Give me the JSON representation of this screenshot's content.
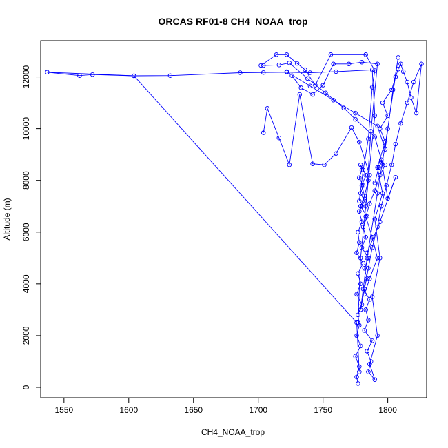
{
  "chart_data": {
    "type": "line",
    "title": "ORCAS RF01-8 CH4_NOAA_trop",
    "xlabel": "CH4_NOAA_trop",
    "ylabel": "Altitude (m)",
    "xlim": [
      1532,
      1830
    ],
    "ylim": [
      -400,
      13400
    ],
    "xticks": [
      1550,
      1600,
      1650,
      1700,
      1750,
      1800
    ],
    "yticks": [
      0,
      2000,
      4000,
      6000,
      8000,
      10000,
      12000
    ],
    "series_color": "#0000ff",
    "series": [
      {
        "x": [
          1777,
          1776,
          1778,
          1775,
          1779,
          1776,
          1778,
          1777,
          1780,
          1776,
          1779,
          1777,
          1781,
          1776,
          1778,
          1777,
          1780,
          1778,
          1782,
          1779,
          1781,
          1778,
          1780,
          1779,
          1783,
          1780,
          1782,
          1779,
          1784,
          1781,
          1783,
          1780,
          1785,
          1782,
          1784,
          1781,
          1786,
          1783,
          1785,
          1782,
          1788,
          1784,
          1787,
          1785,
          1790,
          1786,
          1792,
          1788,
          1794,
          1790,
          1796,
          1792,
          1798,
          1794,
          1800,
          1796,
          1803,
          1806,
          1808,
          1810,
          1812,
          1815,
          1818,
          1822,
          1826,
          1820,
          1815,
          1810,
          1806,
          1803,
          1799,
          1795,
          1792,
          1788,
          1785,
          1782,
          1779
        ],
        "y": [
          150,
          400,
          800,
          1200,
          1600,
          2000,
          2400,
          2800,
          3200,
          3600,
          4000,
          4400,
          4800,
          5200,
          5600,
          6000,
          6400,
          6800,
          7200,
          7500,
          7800,
          8100,
          8400,
          8600,
          8200,
          7800,
          7400,
          7000,
          6600,
          6200,
          5800,
          5400,
          5000,
          4600,
          4200,
          3800,
          3400,
          3000,
          2600,
          2200,
          1800,
          1400,
          1000,
          600,
          300,
          900,
          2000,
          3500,
          5000,
          6500,
          7500,
          8500,
          9500,
          10000,
          10500,
          11000,
          11500,
          12000,
          12300,
          12500,
          12200,
          11800,
          11200,
          10600,
          12500,
          11800,
          11000,
          10200,
          9400,
          8600,
          7800,
          7000,
          6200,
          5400,
          4600,
          3800,
          3000
        ]
      },
      {
        "x": [
          1537,
          1562,
          1572,
          1604,
          1632,
          1686,
          1704,
          1722,
          1740,
          1760,
          1788,
          1790,
          1785,
          1779,
          1777
        ],
        "y": [
          12180,
          12050,
          12090,
          12040,
          12050,
          12160,
          12170,
          12180,
          12160,
          12200,
          12270,
          10500,
          8000,
          5000,
          2500
        ]
      },
      {
        "x": [
          1537,
          1604,
          1776,
          1778
        ],
        "y": [
          12180,
          12040,
          2500,
          600
        ]
      },
      {
        "x": [
          1702,
          1714,
          1722,
          1730,
          1736,
          1744,
          1756,
          1783,
          1790,
          1788,
          1785,
          1781,
          1778
        ],
        "y": [
          12440,
          12860,
          12860,
          12520,
          12280,
          11680,
          12860,
          12860,
          12240,
          11600,
          9600,
          8400,
          7200
        ]
      },
      {
        "x": [
          1704,
          1707,
          1716,
          1724,
          1732,
          1742,
          1751,
          1760,
          1772,
          1778,
          1786,
          1780
        ],
        "y": [
          9840,
          10780,
          9640,
          8600,
          11320,
          8640,
          8600,
          9040,
          10040,
          9480,
          8200,
          7000
        ]
      },
      {
        "x": [
          1704,
          1716,
          1724,
          1738,
          1752,
          1766,
          1775,
          1790,
          1795,
          1800,
          1806,
          1794,
          1784
        ],
        "y": [
          12440,
          12460,
          12540,
          11940,
          11380,
          10800,
          10360,
          9680,
          8800,
          7300,
          8120,
          6400,
          5200
        ]
      },
      {
        "x": [
          1722,
          1740,
          1758,
          1775,
          1792,
          1798,
          1804,
          1808,
          1800,
          1792,
          1784,
          1779
        ],
        "y": [
          12200,
          11650,
          11100,
          10600,
          10100,
          9200,
          11500,
          12750,
          10000,
          7500,
          5000,
          3000
        ]
      },
      {
        "x": [
          1726,
          1733,
          1742,
          1750,
          1758,
          1770,
          1780,
          1792,
          1787,
          1783
        ],
        "y": [
          12050,
          11580,
          11320,
          11680,
          12500,
          12500,
          12570,
          12500,
          9900,
          7000
        ]
      },
      {
        "x": [
          1790,
          1793,
          1795,
          1798,
          1794,
          1790,
          1786,
          1783,
          1788,
          1792,
          1786,
          1782
        ],
        "y": [
          7900,
          8500,
          8700,
          8600,
          8200,
          7600,
          7100,
          6600,
          5800,
          5000,
          4200,
          3600
        ]
      }
    ]
  }
}
